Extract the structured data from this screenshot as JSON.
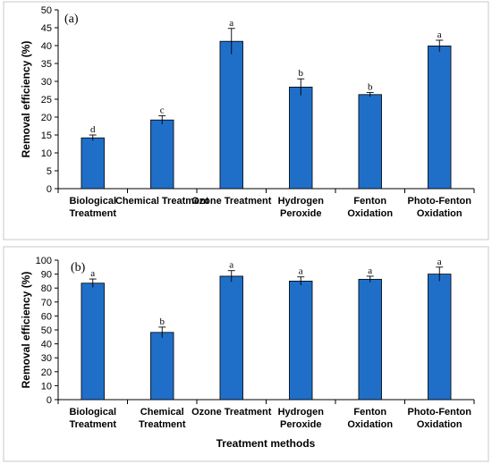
{
  "figure": {
    "xlabel": "Treatment methods"
  },
  "colors": {
    "bar": "#1f6fc8",
    "axis": "#000000",
    "frame": "#c9c9c9"
  },
  "chart_data": [
    {
      "type": "bar",
      "panel_label": "(a)",
      "ylabel": "Removal efficiency (%)",
      "xlabel": "",
      "ylim": [
        0,
        50
      ],
      "yticks": [
        0,
        5,
        10,
        15,
        20,
        25,
        30,
        35,
        40,
        45,
        50
      ],
      "categories": [
        [
          "Biological",
          "Treatment"
        ],
        [
          "Chemical Treatment"
        ],
        [
          "Ozone Treatment"
        ],
        [
          "Hydrogen",
          "Peroxide"
        ],
        [
          "Fenton",
          "Oxidation"
        ],
        [
          "Photo-Fenton",
          "Oxidation"
        ]
      ],
      "values": [
        14.2,
        19.2,
        41.2,
        28.4,
        26.3,
        39.9
      ],
      "errors": [
        0.8,
        1.2,
        3.6,
        2.3,
        0.6,
        1.6
      ],
      "labels": [
        "d",
        "c",
        "a",
        "b",
        "b",
        "a"
      ],
      "grid": false
    },
    {
      "type": "bar",
      "panel_label": "(b)",
      "ylabel": "Removal efficiency (%)",
      "xlabel": "Treatment methods",
      "ylim": [
        0,
        100
      ],
      "yticks": [
        0,
        10,
        20,
        30,
        40,
        50,
        60,
        70,
        80,
        90,
        100
      ],
      "categories": [
        [
          "Biological",
          "Treatment"
        ],
        [
          "Chemical",
          "Treatment"
        ],
        [
          "Ozone Treatment"
        ],
        [
          "Hydrogen",
          "Peroxide"
        ],
        [
          "Fenton",
          "Oxidation"
        ],
        [
          "Photo-Fenton",
          "Oxidation"
        ]
      ],
      "values": [
        83.5,
        48.2,
        88.5,
        85.0,
        86.3,
        90.0
      ],
      "errors": [
        3.0,
        3.8,
        4.0,
        3.0,
        2.2,
        5.0
      ],
      "labels": [
        "a",
        "b",
        "a",
        "a",
        "a",
        "a"
      ],
      "grid": false
    }
  ]
}
